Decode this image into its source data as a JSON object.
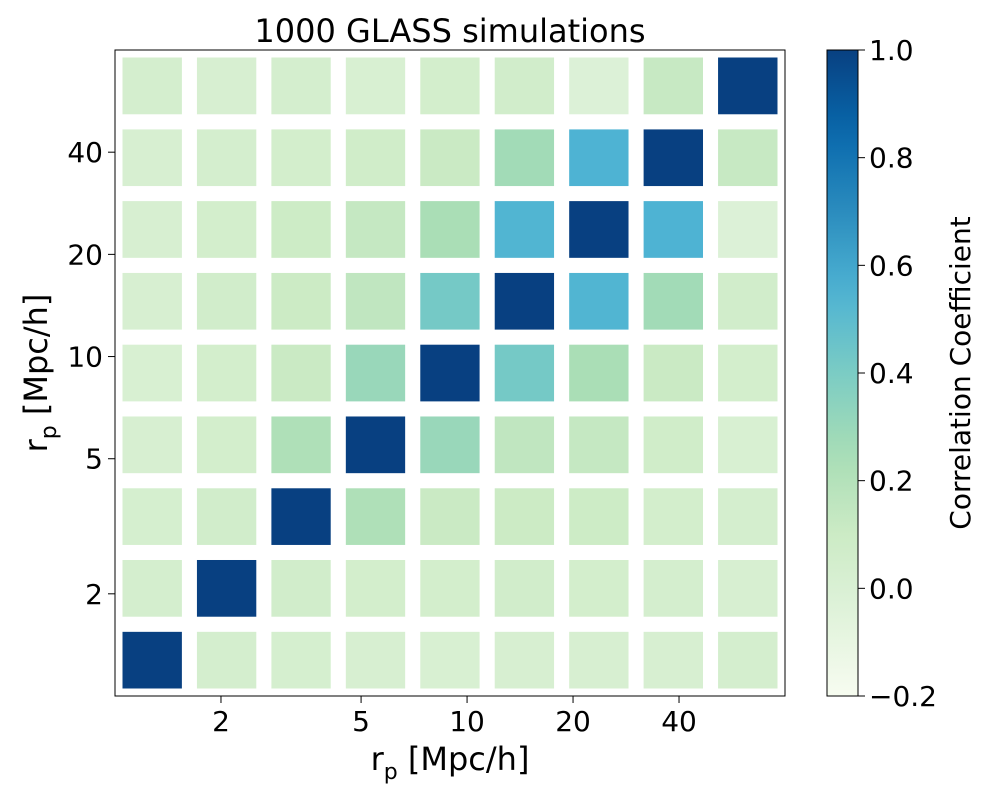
{
  "chart_data": {
    "type": "heatmap",
    "title": "1000 GLASS simulations",
    "xlabel": {
      "base": "r",
      "sub": "p",
      "rest": " [Mpc/h]"
    },
    "ylabel": {
      "base": "r",
      "sub": "p",
      "rest": " [Mpc/h]"
    },
    "n_bins": 9,
    "rp_range": [
      1,
      80
    ],
    "axis_scale": "log",
    "x_ticks": [
      {
        "value": 2,
        "label": "2"
      },
      {
        "value": 5,
        "label": "5"
      },
      {
        "value": 10,
        "label": "10"
      },
      {
        "value": 20,
        "label": "20"
      },
      {
        "value": 40,
        "label": "40"
      }
    ],
    "y_ticks": [
      {
        "value": 2,
        "label": "2"
      },
      {
        "value": 5,
        "label": "5"
      },
      {
        "value": 10,
        "label": "10"
      },
      {
        "value": 20,
        "label": "20"
      },
      {
        "value": 40,
        "label": "40"
      }
    ],
    "colorbar": {
      "label": "Correlation Coefficient",
      "range": [
        -0.2,
        1.0
      ],
      "colormap": "GnBu",
      "ticks": [
        {
          "value": -0.2,
          "label": "−0.2"
        },
        {
          "value": 0.0,
          "label": "0.0"
        },
        {
          "value": 0.2,
          "label": "0.2"
        },
        {
          "value": 0.4,
          "label": "0.4"
        },
        {
          "value": 0.6,
          "label": "0.6"
        },
        {
          "value": 0.8,
          "label": "0.8"
        },
        {
          "value": 1.0,
          "label": "1.0"
        }
      ]
    },
    "matrix_note": "rows ordered from smallest rp bin (bottom) to largest (top); columns from smallest (left) to largest (right)",
    "values": [
      [
        1.0,
        0.04,
        0.03,
        0.02,
        0.01,
        0.02,
        0.02,
        0.02,
        0.04
      ],
      [
        0.04,
        1.0,
        0.06,
        0.05,
        0.05,
        0.06,
        0.05,
        0.04,
        0.02
      ],
      [
        0.03,
        0.06,
        1.0,
        0.22,
        0.11,
        0.1,
        0.09,
        0.05,
        0.04
      ],
      [
        0.02,
        0.05,
        0.22,
        1.0,
        0.3,
        0.15,
        0.13,
        0.07,
        0.01
      ],
      [
        0.01,
        0.05,
        0.11,
        0.3,
        1.0,
        0.42,
        0.24,
        0.11,
        0.05
      ],
      [
        0.02,
        0.06,
        0.1,
        0.15,
        0.42,
        1.0,
        0.54,
        0.27,
        0.06
      ],
      [
        0.02,
        0.05,
        0.09,
        0.13,
        0.24,
        0.54,
        1.0,
        0.55,
        -0.02
      ],
      [
        0.02,
        0.04,
        0.05,
        0.07,
        0.11,
        0.27,
        0.55,
        1.0,
        0.12
      ],
      [
        0.04,
        0.02,
        0.04,
        0.01,
        0.05,
        0.06,
        -0.02,
        0.12,
        1.0
      ]
    ]
  }
}
